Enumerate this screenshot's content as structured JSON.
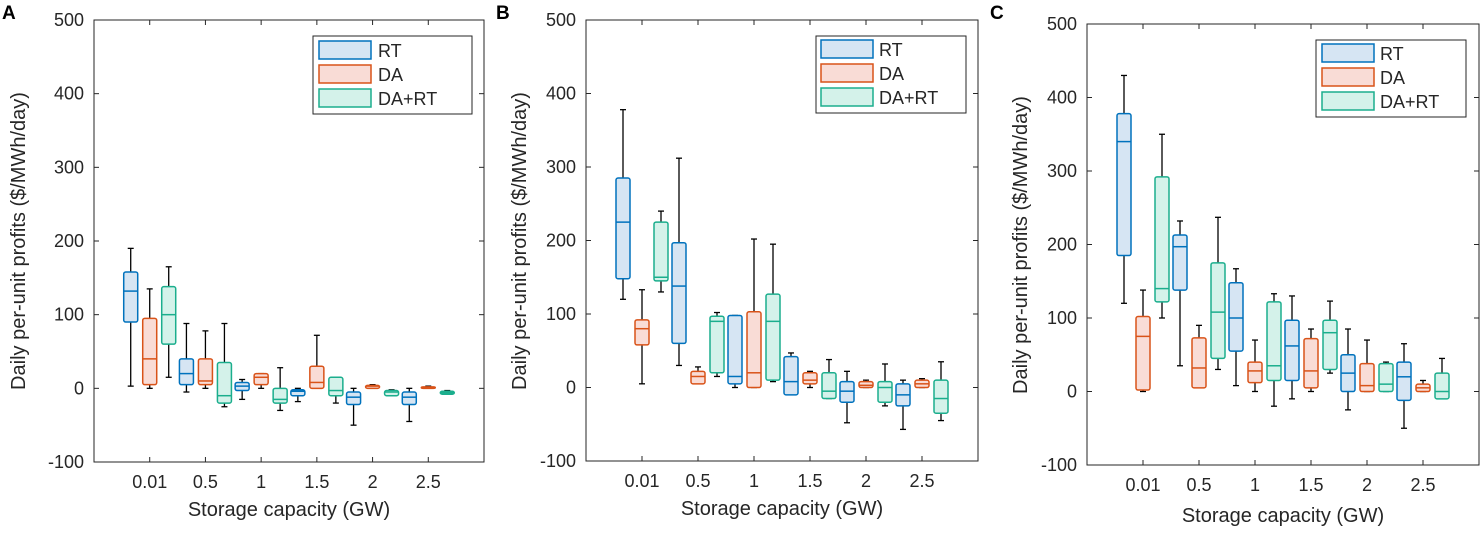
{
  "chart_data": [
    {
      "type": "box",
      "panel_label": "A",
      "xlabel": "Storage capacity (GW)",
      "ylabel": "Daily per-unit profits ($/MWh/day)",
      "ylim": [
        -100,
        500
      ],
      "yticks": [
        -100,
        0,
        100,
        200,
        300,
        400,
        500
      ],
      "categories": [
        "0.01",
        "0.5",
        "1",
        "1.5",
        "2",
        "2.5"
      ],
      "legend": {
        "position": "top-right",
        "entries": [
          "RT",
          "DA",
          "DA+RT"
        ]
      },
      "series": [
        {
          "name": "RT",
          "color": "#0072BD",
          "fill": "#d6e5f3",
          "boxes": [
            {
              "min": 3,
              "q1": 90,
              "median": 132,
              "q3": 158,
              "max": 190
            },
            {
              "min": -5,
              "q1": 5,
              "median": 20,
              "q3": 40,
              "max": 88
            },
            {
              "min": -15,
              "q1": -3,
              "median": 3,
              "q3": 8,
              "max": 12
            },
            {
              "min": -18,
              "q1": -10,
              "median": -4,
              "q3": -2,
              "max": 0
            },
            {
              "min": -50,
              "q1": -22,
              "median": -12,
              "q3": -5,
              "max": 0
            },
            {
              "min": -45,
              "q1": -22,
              "median": -12,
              "q3": -5,
              "max": 0
            }
          ]
        },
        {
          "name": "DA",
          "color": "#D95319",
          "fill": "#f9dcd6",
          "boxes": [
            {
              "min": 0,
              "q1": 5,
              "median": 40,
              "q3": 95,
              "max": 135
            },
            {
              "min": 0,
              "q1": 5,
              "median": 10,
              "q3": 40,
              "max": 78
            },
            {
              "min": 0,
              "q1": 5,
              "median": 15,
              "q3": 20,
              "max": 20
            },
            {
              "min": 0,
              "q1": 0,
              "median": 8,
              "q3": 30,
              "max": 72
            },
            {
              "min": 0,
              "q1": 0,
              "median": 3,
              "q3": 4,
              "max": 5
            },
            {
              "min": 0,
              "q1": 0,
              "median": 1,
              "q3": 2,
              "max": 3
            }
          ]
        },
        {
          "name": "DA+RT",
          "color": "#1BAE8D",
          "fill": "#d4f2ea",
          "boxes": [
            {
              "min": 15,
              "q1": 60,
              "median": 100,
              "q3": 138,
              "max": 165
            },
            {
              "min": -25,
              "q1": -20,
              "median": -10,
              "q3": 35,
              "max": 88
            },
            {
              "min": -30,
              "q1": -20,
              "median": -15,
              "q3": 0,
              "max": 28
            },
            {
              "min": -20,
              "q1": -10,
              "median": -3,
              "q3": 15,
              "max": 15
            },
            {
              "min": -10,
              "q1": -10,
              "median": -5,
              "q3": -3,
              "max": -2
            },
            {
              "min": -8,
              "q1": -8,
              "median": -6,
              "q3": -4,
              "max": -3
            }
          ]
        }
      ]
    },
    {
      "type": "box",
      "panel_label": "B",
      "xlabel": "Storage capacity (GW)",
      "ylabel": "Daily per-unit profits ($/MWh/day)",
      "ylim": [
        -100,
        500
      ],
      "yticks": [
        -100,
        0,
        100,
        200,
        300,
        400,
        500
      ],
      "categories": [
        "0.01",
        "0.5",
        "1",
        "1.5",
        "2",
        "2.5"
      ],
      "legend": {
        "position": "top-right",
        "entries": [
          "RT",
          "DA",
          "DA+RT"
        ]
      },
      "series": [
        {
          "name": "RT",
          "color": "#0072BD",
          "fill": "#d6e5f3",
          "boxes": [
            {
              "min": 120,
              "q1": 148,
              "median": 225,
              "q3": 285,
              "max": 378
            },
            {
              "min": 30,
              "q1": 60,
              "median": 138,
              "q3": 197,
              "max": 312
            },
            {
              "min": 0,
              "q1": 5,
              "median": 15,
              "q3": 98,
              "max": 98
            },
            {
              "min": -10,
              "q1": -10,
              "median": 8,
              "q3": 42,
              "max": 47
            },
            {
              "min": -48,
              "q1": -20,
              "median": -5,
              "q3": 8,
              "max": 22
            },
            {
              "min": -57,
              "q1": -25,
              "median": -10,
              "q3": 5,
              "max": 10
            }
          ]
        },
        {
          "name": "DA",
          "color": "#D95319",
          "fill": "#f9dcd6",
          "boxes": [
            {
              "min": 5,
              "q1": 58,
              "median": 80,
              "q3": 92,
              "max": 133
            },
            {
              "min": 5,
              "q1": 5,
              "median": 15,
              "q3": 22,
              "max": 28
            },
            {
              "min": 0,
              "q1": 0,
              "median": 20,
              "q3": 103,
              "max": 202
            },
            {
              "min": 0,
              "q1": 5,
              "median": 10,
              "q3": 20,
              "max": 22
            },
            {
              "min": 0,
              "q1": 0,
              "median": 3,
              "q3": 8,
              "max": 10
            },
            {
              "min": 0,
              "q1": 0,
              "median": 5,
              "q3": 10,
              "max": 12
            }
          ]
        },
        {
          "name": "DA+RT",
          "color": "#1BAE8D",
          "fill": "#d4f2ea",
          "boxes": [
            {
              "min": 130,
              "q1": 145,
              "median": 150,
              "q3": 225,
              "max": 240
            },
            {
              "min": 15,
              "q1": 20,
              "median": 90,
              "q3": 97,
              "max": 102
            },
            {
              "min": 8,
              "q1": 10,
              "median": 90,
              "q3": 127,
              "max": 195
            },
            {
              "min": -15,
              "q1": -15,
              "median": -5,
              "q3": 20,
              "max": 38
            },
            {
              "min": -25,
              "q1": -20,
              "median": 0,
              "q3": 8,
              "max": 32
            },
            {
              "min": -45,
              "q1": -35,
              "median": -15,
              "q3": 10,
              "max": 35
            }
          ]
        }
      ]
    },
    {
      "type": "box",
      "panel_label": "C",
      "xlabel": "Storage capacity (GW)",
      "ylabel": "Daily per-unit profits ($/MWh/day)",
      "ylim": [
        -100,
        500
      ],
      "yticks": [
        -100,
        0,
        100,
        200,
        300,
        400,
        500
      ],
      "categories": [
        "0.01",
        "0.5",
        "1",
        "1.5",
        "2",
        "2.5"
      ],
      "legend": {
        "position": "top-right",
        "entries": [
          "RT",
          "DA",
          "DA+RT"
        ]
      },
      "series": [
        {
          "name": "RT",
          "color": "#0072BD",
          "fill": "#d6e5f3",
          "boxes": [
            {
              "min": 120,
              "q1": 185,
              "median": 340,
              "q3": 378,
              "max": 430
            },
            {
              "min": 35,
              "q1": 138,
              "median": 197,
              "q3": 213,
              "max": 232
            },
            {
              "min": 8,
              "q1": 55,
              "median": 100,
              "q3": 148,
              "max": 167
            },
            {
              "min": -10,
              "q1": 15,
              "median": 62,
              "q3": 97,
              "max": 130
            },
            {
              "min": -25,
              "q1": 0,
              "median": 25,
              "q3": 50,
              "max": 85
            },
            {
              "min": -50,
              "q1": -12,
              "median": 20,
              "q3": 40,
              "max": 65
            }
          ]
        },
        {
          "name": "DA",
          "color": "#D95319",
          "fill": "#f9dcd6",
          "boxes": [
            {
              "min": 0,
              "q1": 2,
              "median": 75,
              "q3": 102,
              "max": 138
            },
            {
              "min": 5,
              "q1": 5,
              "median": 32,
              "q3": 73,
              "max": 90
            },
            {
              "min": 0,
              "q1": 12,
              "median": 28,
              "q3": 40,
              "max": 70
            },
            {
              "min": 0,
              "q1": 5,
              "median": 28,
              "q3": 72,
              "max": 85
            },
            {
              "min": 0,
              "q1": 0,
              "median": 8,
              "q3": 38,
              "max": 70
            },
            {
              "min": 0,
              "q1": 0,
              "median": 5,
              "q3": 10,
              "max": 15
            }
          ]
        },
        {
          "name": "DA+RT",
          "color": "#1BAE8D",
          "fill": "#d4f2ea",
          "boxes": [
            {
              "min": 100,
              "q1": 122,
              "median": 140,
              "q3": 292,
              "max": 350
            },
            {
              "min": 30,
              "q1": 45,
              "median": 108,
              "q3": 175,
              "max": 237
            },
            {
              "min": -20,
              "q1": 15,
              "median": 35,
              "q3": 122,
              "max": 133
            },
            {
              "min": 25,
              "q1": 30,
              "median": 80,
              "q3": 97,
              "max": 123
            },
            {
              "min": 0,
              "q1": 0,
              "median": 10,
              "q3": 38,
              "max": 40
            },
            {
              "min": -10,
              "q1": -10,
              "median": 0,
              "q3": 25,
              "max": 45
            }
          ]
        }
      ]
    }
  ]
}
